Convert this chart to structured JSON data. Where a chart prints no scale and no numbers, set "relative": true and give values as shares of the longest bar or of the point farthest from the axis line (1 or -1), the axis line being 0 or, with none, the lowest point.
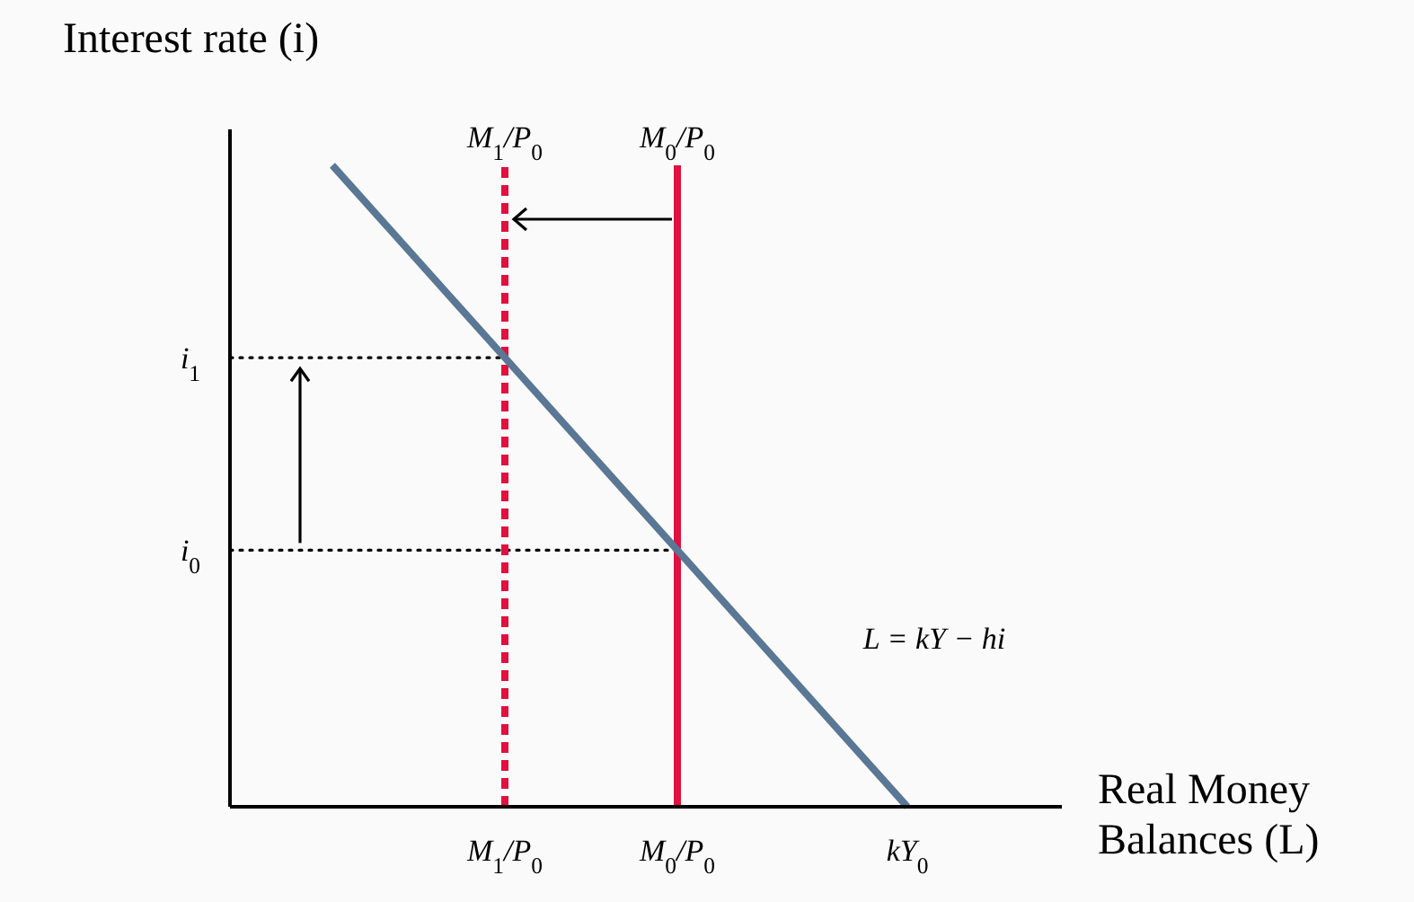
{
  "chart_data": {
    "type": "line",
    "relative": true,
    "ylabel": "Interest rate (i)",
    "xlabel": "Real Money Balances (L)",
    "categories": [
      null,
      null,
      null,
      "M$_{1}$/P$_{0}$",
      null,
      null,
      "M$_{0}$/P$_{0}$",
      null,
      null,
      null,
      "kY$_{0}$"
    ],
    "series": [
      {
        "color": "#5a7795",
        "values": [
          1,
          0.9,
          0.8,
          0.7,
          0.6,
          0.5,
          0.4,
          0.3,
          0.2,
          0.1,
          0
        ]
      }
    ],
    "ref_lines": [
      {
        "axis": "x",
        "value": "M$_{1}$/P$_{0}$",
        "label": "M$_{1}$/P$_{0}$",
        "color": "#e0103f",
        "line_style": "dashed"
      },
      {
        "axis": "x",
        "value": "M$_{0}$/P$_{0}$",
        "label": "M$_{0}$/P$_{0}$",
        "color": "#e0103f",
        "line_style": "solid"
      },
      {
        "axis": "y",
        "value": 0.7,
        "label": "i$_{1}$",
        "color": "#000000",
        "line_style": "dotted"
      },
      {
        "axis": "y",
        "value": 0.4,
        "label": "i$_{0}$",
        "color": "#000000",
        "line_style": "dotted"
      }
    ],
    "annotations": [
      "L = kY − hi"
    ]
  }
}
